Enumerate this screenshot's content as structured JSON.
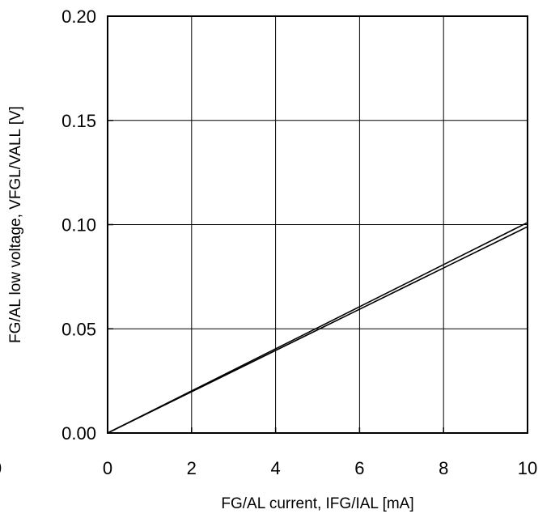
{
  "chart_data": {
    "type": "line",
    "title": "",
    "xlabel": "FG/AL current, IFG/IAL [mA]",
    "ylabel": "FG/AL low voltage, VFGL/VALL [V]",
    "xlim": [
      0,
      10
    ],
    "ylim": [
      0,
      0.2
    ],
    "x_ticks": [
      "0",
      "2",
      "4",
      "6",
      "8",
      "10"
    ],
    "y_ticks": [
      "0.00",
      "0.05",
      "0.10",
      "0.15",
      "0.20"
    ],
    "x_tick_values": [
      0,
      2,
      4,
      6,
      8,
      10
    ],
    "y_tick_values": [
      0,
      0.05,
      0.1,
      0.15,
      0.2
    ],
    "grid": true,
    "legend": "none",
    "series": [
      {
        "x": [
          0,
          2,
          4,
          6,
          8,
          10
        ],
        "values": [
          0,
          0.0202,
          0.0404,
          0.0606,
          0.0808,
          0.101
        ]
      },
      {
        "x": [
          0,
          2,
          4,
          6,
          8,
          10
        ],
        "values": [
          0,
          0.0198,
          0.0396,
          0.0594,
          0.0792,
          0.099
        ]
      }
    ]
  },
  "left_edge_fragment": "0"
}
